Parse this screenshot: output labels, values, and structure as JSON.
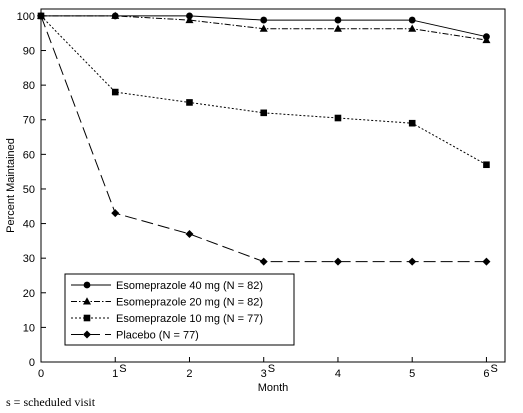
{
  "chart_data": {
    "type": "line",
    "xlabel": "Month",
    "ylabel": "Percent Maintained",
    "xlim": [
      0,
      6.25
    ],
    "ylim": [
      0,
      102
    ],
    "x_ticks": [
      0,
      1,
      2,
      3,
      4,
      5,
      6
    ],
    "x_tick_labels": [
      "0",
      "1",
      "2",
      "3",
      "4",
      "5",
      "6"
    ],
    "scheduled_marker": "S",
    "scheduled_months": [
      1,
      3,
      6
    ],
    "y_ticks": [
      0,
      10,
      20,
      30,
      40,
      50,
      60,
      70,
      80,
      90,
      100
    ],
    "y_tick_labels": [
      "0",
      "10",
      "20",
      "30",
      "40",
      "50",
      "60",
      "70",
      "80",
      "90",
      "100"
    ],
    "grid": false,
    "legend_position": "bottom-left",
    "series": [
      {
        "name": "Esomeprazole 40 mg (N = 82)",
        "marker": "circle",
        "dash": "solid",
        "x": [
          0,
          1,
          2,
          3,
          4,
          5,
          6
        ],
        "y": [
          100,
          100,
          100,
          98.8,
          98.8,
          98.8,
          94
        ]
      },
      {
        "name": "Esomeprazole 20 mg (N = 82)",
        "marker": "triangle",
        "dash": "dashdot",
        "x": [
          0,
          1,
          2,
          3,
          4,
          5,
          6
        ],
        "y": [
          100,
          100,
          98.8,
          96.3,
          96.3,
          96.3,
          93
        ]
      },
      {
        "name": "Esomeprazole 10 mg (N = 77)",
        "marker": "square",
        "dash": "dotted",
        "x": [
          0,
          1,
          2,
          3,
          4,
          5,
          6
        ],
        "y": [
          100,
          78,
          75,
          72,
          70.5,
          69,
          57
        ]
      },
      {
        "name": "Placebo (N = 77)",
        "marker": "diamond",
        "dash": "longdash",
        "x": [
          0,
          1,
          2,
          3,
          4,
          5,
          6
        ],
        "y": [
          100,
          43,
          37,
          29,
          29,
          29,
          29
        ]
      }
    ]
  },
  "footnote": "s = scheduled visit"
}
